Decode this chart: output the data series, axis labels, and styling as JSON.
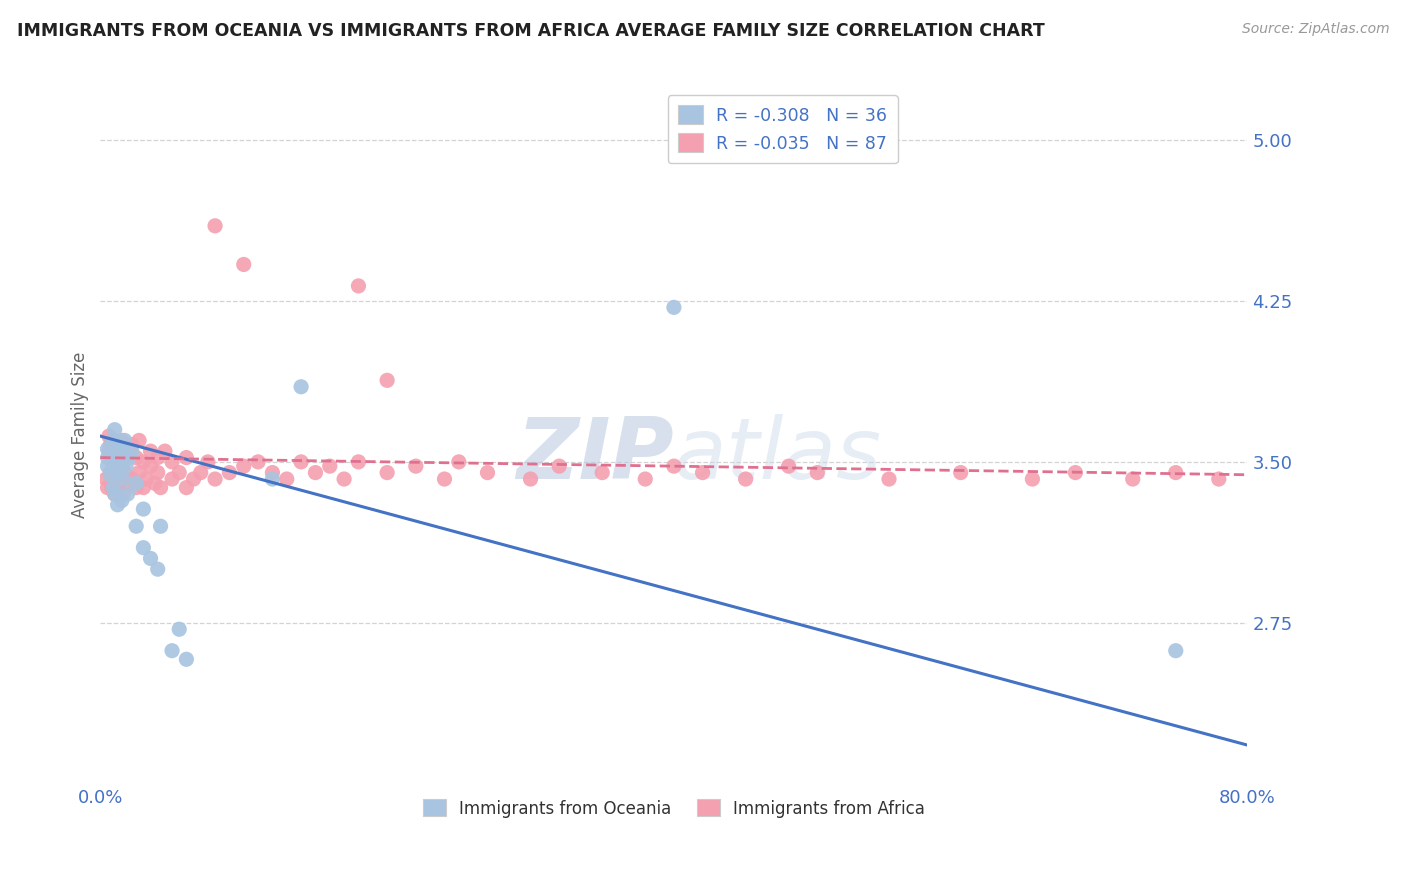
{
  "title": "IMMIGRANTS FROM OCEANIA VS IMMIGRANTS FROM AFRICA AVERAGE FAMILY SIZE CORRELATION CHART",
  "source_text": "Source: ZipAtlas.com",
  "ylabel": "Average Family Size",
  "xlim": [
    0.0,
    0.8
  ],
  "ylim": [
    2.0,
    5.25
  ],
  "yticks": [
    2.75,
    3.5,
    4.25,
    5.0
  ],
  "xticklabels": [
    "0.0%",
    "80.0%"
  ],
  "legend_R_oceania": "-0.308",
  "legend_N_oceania": "36",
  "legend_R_africa": "-0.035",
  "legend_N_africa": "87",
  "oceania_color": "#a8c4e0",
  "africa_color": "#f4a0b0",
  "oceania_line_color": "#4472c4",
  "africa_line_color": "#e07090",
  "background_color": "#ffffff",
  "grid_color": "#c8c8c8",
  "axis_label_color": "#4472c4",
  "title_color": "#222222",
  "oceania_line_x0": 0.0,
  "oceania_line_y0": 3.62,
  "oceania_line_x1": 0.8,
  "oceania_line_y1": 2.18,
  "africa_line_x0": 0.0,
  "africa_line_y0": 3.52,
  "africa_line_x1": 0.8,
  "africa_line_y1": 3.44,
  "oceania_x": [
    0.005,
    0.005,
    0.005,
    0.007,
    0.008,
    0.009,
    0.009,
    0.01,
    0.01,
    0.01,
    0.012,
    0.012,
    0.013,
    0.015,
    0.015,
    0.016,
    0.016,
    0.017,
    0.018,
    0.019,
    0.02,
    0.022,
    0.025,
    0.025,
    0.03,
    0.03,
    0.035,
    0.04,
    0.042,
    0.05,
    0.055,
    0.06,
    0.12,
    0.14,
    0.4,
    0.75
  ],
  "oceania_y": [
    3.48,
    3.52,
    3.56,
    3.44,
    3.5,
    3.38,
    3.6,
    3.35,
    3.55,
    3.65,
    3.3,
    3.45,
    3.58,
    3.32,
    3.5,
    3.42,
    3.54,
    3.6,
    3.48,
    3.35,
    3.52,
    3.55,
    3.2,
    3.4,
    3.1,
    3.28,
    3.05,
    3.0,
    3.2,
    2.62,
    2.72,
    2.58,
    3.42,
    3.85,
    4.22,
    2.62
  ],
  "africa_x": [
    0.004,
    0.005,
    0.006,
    0.006,
    0.007,
    0.007,
    0.008,
    0.008,
    0.009,
    0.009,
    0.01,
    0.01,
    0.01,
    0.01,
    0.012,
    0.012,
    0.013,
    0.013,
    0.014,
    0.015,
    0.015,
    0.016,
    0.016,
    0.017,
    0.018,
    0.02,
    0.02,
    0.022,
    0.022,
    0.025,
    0.025,
    0.027,
    0.027,
    0.03,
    0.03,
    0.032,
    0.035,
    0.035,
    0.038,
    0.04,
    0.04,
    0.042,
    0.045,
    0.05,
    0.05,
    0.055,
    0.06,
    0.06,
    0.065,
    0.07,
    0.075,
    0.08,
    0.09,
    0.1,
    0.11,
    0.12,
    0.13,
    0.14,
    0.15,
    0.16,
    0.17,
    0.18,
    0.2,
    0.22,
    0.24,
    0.25,
    0.27,
    0.3,
    0.32,
    0.35,
    0.38,
    0.4,
    0.42,
    0.45,
    0.48,
    0.5,
    0.55,
    0.6,
    0.65,
    0.68,
    0.72,
    0.75,
    0.78,
    0.08,
    0.1,
    0.18,
    0.2
  ],
  "africa_y": [
    3.42,
    3.38,
    3.55,
    3.62,
    3.45,
    3.58,
    3.38,
    3.52,
    3.48,
    3.6,
    3.35,
    3.45,
    3.52,
    3.58,
    3.4,
    3.5,
    3.38,
    3.55,
    3.42,
    3.48,
    3.6,
    3.35,
    3.52,
    3.45,
    3.58,
    3.4,
    3.55,
    3.42,
    3.58,
    3.38,
    3.52,
    3.45,
    3.6,
    3.38,
    3.5,
    3.42,
    3.55,
    3.48,
    3.4,
    3.45,
    3.52,
    3.38,
    3.55,
    3.42,
    3.5,
    3.45,
    3.38,
    3.52,
    3.42,
    3.45,
    3.5,
    3.42,
    3.45,
    3.48,
    3.5,
    3.45,
    3.42,
    3.5,
    3.45,
    3.48,
    3.42,
    3.5,
    3.45,
    3.48,
    3.42,
    3.5,
    3.45,
    3.42,
    3.48,
    3.45,
    3.42,
    3.48,
    3.45,
    3.42,
    3.48,
    3.45,
    3.42,
    3.45,
    3.42,
    3.45,
    3.42,
    3.45,
    3.42,
    4.6,
    4.42,
    4.32,
    3.88
  ]
}
